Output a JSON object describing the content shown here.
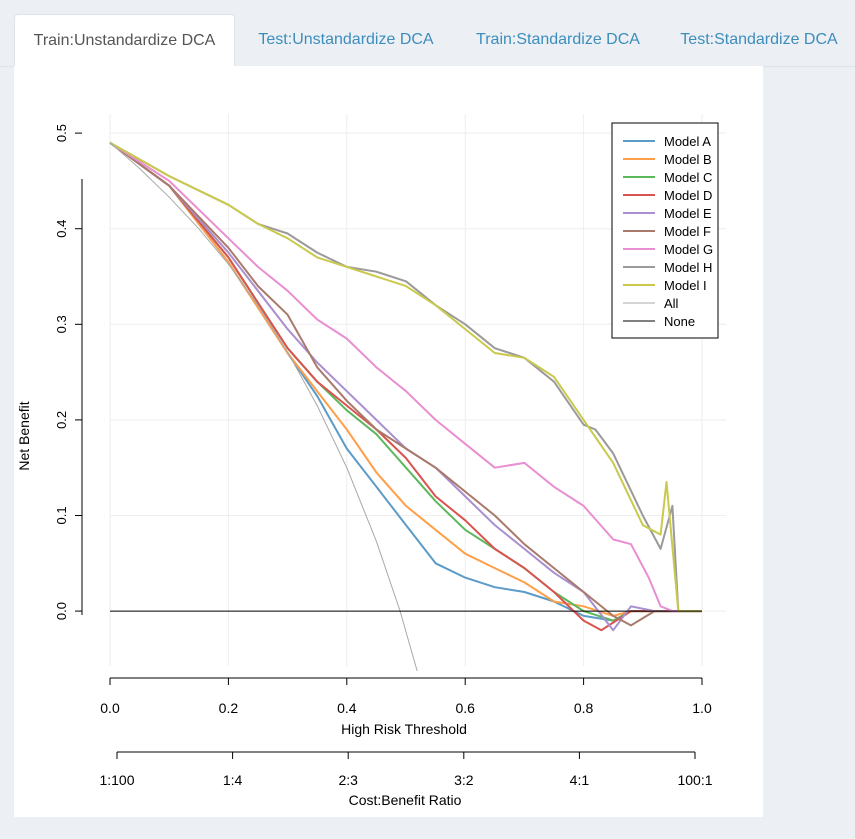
{
  "tabs": [
    {
      "label": "Train:Unstandardize DCA",
      "active": true
    },
    {
      "label": "Test:Unstandardize DCA",
      "active": false
    },
    {
      "label": "Train:Standardize DCA",
      "active": false
    },
    {
      "label": "Test:Standardize DCA",
      "active": false
    }
  ],
  "chart_data": {
    "type": "line",
    "title": "",
    "xlabel": "High Risk Threshold",
    "ylabel": "Net Benefit",
    "xlim": [
      0,
      1
    ],
    "ylim": [
      -0.07,
      0.52
    ],
    "xticks": [
      "0.0",
      "0.2",
      "0.4",
      "0.6",
      "0.8",
      "1.0"
    ],
    "yticks": [
      "0.0",
      "0.1",
      "0.2",
      "0.3",
      "0.4",
      "0.5"
    ],
    "grid": true,
    "legend_position": "top-right",
    "secondary_axis": {
      "label": "Cost:Benefit Ratio",
      "ticks": [
        "1:100",
        "1:4",
        "2:3",
        "3:2",
        "4:1",
        "100:1"
      ]
    },
    "series": [
      {
        "name": "Model A",
        "color": "#5b9bc7",
        "points": [
          [
            0.0,
            0.49
          ],
          [
            0.1,
            0.445
          ],
          [
            0.2,
            0.365
          ],
          [
            0.3,
            0.27
          ],
          [
            0.35,
            0.225
          ],
          [
            0.4,
            0.17
          ],
          [
            0.45,
            0.13
          ],
          [
            0.5,
            0.09
          ],
          [
            0.55,
            0.05
          ],
          [
            0.6,
            0.035
          ],
          [
            0.65,
            0.025
          ],
          [
            0.7,
            0.02
          ],
          [
            0.75,
            0.01
          ],
          [
            0.8,
            -0.005
          ],
          [
            0.85,
            -0.01
          ],
          [
            0.88,
            0.0
          ],
          [
            1.0,
            0.0
          ]
        ]
      },
      {
        "name": "Model B",
        "color": "#ff9f4a",
        "points": [
          [
            0.0,
            0.49
          ],
          [
            0.1,
            0.445
          ],
          [
            0.2,
            0.365
          ],
          [
            0.3,
            0.27
          ],
          [
            0.35,
            0.23
          ],
          [
            0.4,
            0.19
          ],
          [
            0.45,
            0.145
          ],
          [
            0.5,
            0.11
          ],
          [
            0.55,
            0.085
          ],
          [
            0.6,
            0.06
          ],
          [
            0.65,
            0.045
          ],
          [
            0.7,
            0.03
          ],
          [
            0.75,
            0.01
          ],
          [
            0.8,
            0.005
          ],
          [
            0.85,
            -0.005
          ],
          [
            0.88,
            0.0
          ],
          [
            1.0,
            0.0
          ]
        ]
      },
      {
        "name": "Model C",
        "color": "#5cb85c",
        "points": [
          [
            0.0,
            0.49
          ],
          [
            0.1,
            0.445
          ],
          [
            0.2,
            0.37
          ],
          [
            0.3,
            0.275
          ],
          [
            0.35,
            0.24
          ],
          [
            0.4,
            0.21
          ],
          [
            0.45,
            0.185
          ],
          [
            0.5,
            0.15
          ],
          [
            0.55,
            0.115
          ],
          [
            0.6,
            0.085
          ],
          [
            0.65,
            0.065
          ],
          [
            0.7,
            0.045
          ],
          [
            0.75,
            0.02
          ],
          [
            0.8,
            0.0
          ],
          [
            0.85,
            -0.01
          ],
          [
            0.88,
            0.0
          ],
          [
            1.0,
            0.0
          ]
        ]
      },
      {
        "name": "Model D",
        "color": "#d9534f",
        "points": [
          [
            0.0,
            0.49
          ],
          [
            0.1,
            0.445
          ],
          [
            0.2,
            0.37
          ],
          [
            0.3,
            0.275
          ],
          [
            0.35,
            0.24
          ],
          [
            0.4,
            0.215
          ],
          [
            0.45,
            0.19
          ],
          [
            0.5,
            0.16
          ],
          [
            0.55,
            0.12
          ],
          [
            0.6,
            0.095
          ],
          [
            0.65,
            0.065
          ],
          [
            0.7,
            0.045
          ],
          [
            0.75,
            0.02
          ],
          [
            0.8,
            -0.01
          ],
          [
            0.83,
            -0.02
          ],
          [
            0.88,
            0.0
          ],
          [
            1.0,
            0.0
          ]
        ]
      },
      {
        "name": "Model E",
        "color": "#a98fcf",
        "points": [
          [
            0.0,
            0.49
          ],
          [
            0.1,
            0.445
          ],
          [
            0.2,
            0.375
          ],
          [
            0.3,
            0.295
          ],
          [
            0.35,
            0.26
          ],
          [
            0.4,
            0.23
          ],
          [
            0.45,
            0.2
          ],
          [
            0.5,
            0.17
          ],
          [
            0.55,
            0.15
          ],
          [
            0.6,
            0.12
          ],
          [
            0.65,
            0.09
          ],
          [
            0.7,
            0.065
          ],
          [
            0.75,
            0.04
          ],
          [
            0.8,
            0.02
          ],
          [
            0.85,
            -0.02
          ],
          [
            0.88,
            0.005
          ],
          [
            0.92,
            0.0
          ],
          [
            1.0,
            0.0
          ]
        ]
      },
      {
        "name": "Model F",
        "color": "#a97a6b",
        "points": [
          [
            0.0,
            0.49
          ],
          [
            0.1,
            0.445
          ],
          [
            0.2,
            0.38
          ],
          [
            0.25,
            0.34
          ],
          [
            0.3,
            0.31
          ],
          [
            0.35,
            0.255
          ],
          [
            0.4,
            0.22
          ],
          [
            0.45,
            0.19
          ],
          [
            0.5,
            0.17
          ],
          [
            0.55,
            0.15
          ],
          [
            0.6,
            0.125
          ],
          [
            0.65,
            0.1
          ],
          [
            0.7,
            0.07
          ],
          [
            0.75,
            0.045
          ],
          [
            0.8,
            0.02
          ],
          [
            0.85,
            -0.005
          ],
          [
            0.88,
            -0.015
          ],
          [
            0.92,
            0.0
          ],
          [
            1.0,
            0.0
          ]
        ]
      },
      {
        "name": "Model G",
        "color": "#e98ed1",
        "points": [
          [
            0.0,
            0.49
          ],
          [
            0.1,
            0.45
          ],
          [
            0.2,
            0.39
          ],
          [
            0.25,
            0.36
          ],
          [
            0.3,
            0.335
          ],
          [
            0.35,
            0.305
          ],
          [
            0.4,
            0.285
          ],
          [
            0.45,
            0.255
          ],
          [
            0.5,
            0.23
          ],
          [
            0.55,
            0.2
          ],
          [
            0.6,
            0.175
          ],
          [
            0.65,
            0.15
          ],
          [
            0.7,
            0.155
          ],
          [
            0.75,
            0.13
          ],
          [
            0.8,
            0.11
          ],
          [
            0.85,
            0.075
          ],
          [
            0.88,
            0.07
          ],
          [
            0.91,
            0.035
          ],
          [
            0.93,
            0.005
          ],
          [
            0.95,
            0.0
          ],
          [
            1.0,
            0.0
          ]
        ]
      },
      {
        "name": "Model H",
        "color": "#9a9a9a",
        "points": [
          [
            0.0,
            0.49
          ],
          [
            0.1,
            0.455
          ],
          [
            0.2,
            0.425
          ],
          [
            0.25,
            0.405
          ],
          [
            0.3,
            0.395
          ],
          [
            0.35,
            0.375
          ],
          [
            0.4,
            0.36
          ],
          [
            0.45,
            0.355
          ],
          [
            0.5,
            0.345
          ],
          [
            0.55,
            0.32
          ],
          [
            0.6,
            0.3
          ],
          [
            0.65,
            0.275
          ],
          [
            0.7,
            0.265
          ],
          [
            0.75,
            0.24
          ],
          [
            0.8,
            0.195
          ],
          [
            0.82,
            0.19
          ],
          [
            0.85,
            0.165
          ],
          [
            0.9,
            0.1
          ],
          [
            0.93,
            0.065
          ],
          [
            0.95,
            0.11
          ],
          [
            0.96,
            0.0
          ],
          [
            1.0,
            0.0
          ]
        ]
      },
      {
        "name": "Model I",
        "color": "#c9c94b",
        "points": [
          [
            0.0,
            0.49
          ],
          [
            0.1,
            0.455
          ],
          [
            0.2,
            0.425
          ],
          [
            0.25,
            0.405
          ],
          [
            0.3,
            0.39
          ],
          [
            0.35,
            0.37
          ],
          [
            0.4,
            0.36
          ],
          [
            0.45,
            0.35
          ],
          [
            0.5,
            0.34
          ],
          [
            0.55,
            0.32
          ],
          [
            0.6,
            0.295
          ],
          [
            0.65,
            0.27
          ],
          [
            0.7,
            0.265
          ],
          [
            0.75,
            0.245
          ],
          [
            0.8,
            0.2
          ],
          [
            0.85,
            0.155
          ],
          [
            0.9,
            0.09
          ],
          [
            0.93,
            0.08
          ],
          [
            0.94,
            0.135
          ],
          [
            0.96,
            0.0
          ],
          [
            1.0,
            0.0
          ]
        ]
      },
      {
        "name": "All",
        "color": "#a8a8a8",
        "thin": true,
        "points": [
          [
            0.0,
            0.49
          ],
          [
            0.05,
            0.463
          ],
          [
            0.1,
            0.433
          ],
          [
            0.15,
            0.4
          ],
          [
            0.2,
            0.363
          ],
          [
            0.25,
            0.32
          ],
          [
            0.3,
            0.271
          ],
          [
            0.35,
            0.215
          ],
          [
            0.4,
            0.15
          ],
          [
            0.45,
            0.073
          ],
          [
            0.49,
            0.0
          ],
          [
            0.52,
            -0.065
          ]
        ]
      },
      {
        "name": "None",
        "color": "#000000",
        "thin": true,
        "points": [
          [
            0.0,
            0.0
          ],
          [
            1.0,
            0.0
          ]
        ]
      }
    ]
  }
}
